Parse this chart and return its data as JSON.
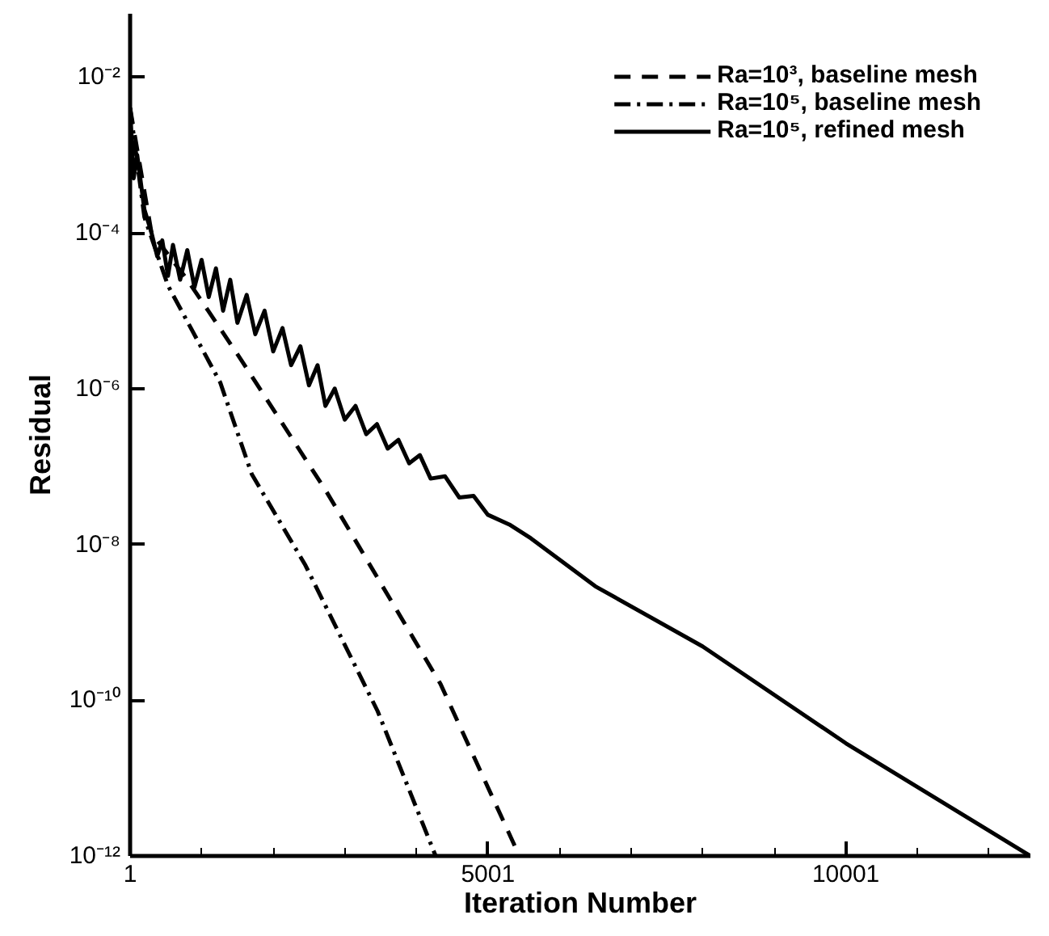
{
  "chart_data": {
    "type": "line",
    "xlabel": "Iteration Number",
    "ylabel": "Residual",
    "log": "y",
    "grid": false,
    "legend": "top right",
    "marker": "none",
    "xlim": [
      1,
      12580
    ],
    "ylim": [
      1e-12,
      0.065
    ],
    "xticks": [
      1,
      {
        "value": 1001,
        "label": null
      },
      {
        "value": 2001,
        "label": null
      },
      {
        "value": 3001,
        "label": null
      },
      {
        "value": 4001,
        "label": null
      },
      5001,
      {
        "value": 6001,
        "label": null
      },
      {
        "value": 7001,
        "label": null
      },
      {
        "value": 8001,
        "label": null
      },
      {
        "value": 9001,
        "label": null
      },
      10001,
      {
        "value": 11001,
        "label": null
      },
      {
        "value": 12001,
        "label": null
      }
    ],
    "yticks": [
      {
        "value": 1e-12,
        "label": "10⁻¹²"
      },
      {
        "value": 1e-10,
        "label": "10⁻¹⁰"
      },
      {
        "value": 1e-08,
        "label": "10⁻⁸"
      },
      {
        "value": 1e-06,
        "label": "10⁻⁶"
      },
      {
        "value": 0.0001,
        "label": "10⁻⁴"
      },
      {
        "value": 0.01,
        "label": "10⁻²"
      }
    ],
    "series": [
      {
        "name": "Ra=10³, baseline mesh",
        "color": "#000000",
        "line_style": "dashed",
        "x": [
          1,
          300,
          800,
          1520,
          2730,
          4340,
          5440
        ],
        "values": [
          0.004,
          0.0001,
          2.5e-05,
          2.6e-06,
          5e-08,
          1.6e-10,
          1e-12
        ]
      },
      {
        "name": "Ra=10⁵, baseline mesh",
        "color": "#000000",
        "line_style": "dashdot",
        "x": [
          1,
          200,
          530,
          1260,
          1700,
          2450,
          3460,
          4270
        ],
        "values": [
          0.004,
          0.00016,
          2.1e-05,
          1.2e-06,
          8e-08,
          5.4e-09,
          7.2e-11,
          1e-12
        ]
      },
      {
        "name": "Ra=10⁵, refined mesh",
        "color": "#000000",
        "line_style": "solid",
        "x": [
          1,
          50,
          100,
          200,
          300,
          380,
          450,
          530,
          600,
          700,
          800,
          900,
          1000,
          1100,
          1200,
          1300,
          1400,
          1500,
          1630,
          1750,
          1880,
          2000,
          2130,
          2250,
          2380,
          2500,
          2620,
          2730,
          2860,
          3000,
          3150,
          3300,
          3450,
          3600,
          3750,
          3900,
          4050,
          4200,
          4400,
          4600,
          4800,
          5000,
          5300,
          5600,
          6500,
          8000,
          10001,
          12580
        ],
        "values": [
          0.004,
          0.0005,
          0.001,
          0.0002,
          0.0001,
          5e-05,
          8e-05,
          2.8e-05,
          7e-05,
          2.5e-05,
          6e-05,
          2e-05,
          4.5e-05,
          1.5e-05,
          3.5e-05,
          1e-05,
          2.5e-05,
          7e-06,
          1.6e-05,
          5e-06,
          1e-05,
          3e-06,
          6e-06,
          2e-06,
          3.5e-06,
          1.1e-06,
          2e-06,
          6e-07,
          1e-06,
          4e-07,
          6e-07,
          2.6e-07,
          3.5e-07,
          1.7e-07,
          2.2e-07,
          1.1e-07,
          1.4e-07,
          7e-08,
          7.5e-08,
          4e-08,
          4.2e-08,
          2.4e-08,
          1.8e-08,
          1.2e-08,
          2.9e-09,
          4.9e-10,
          2.8e-11,
          1e-12
        ]
      }
    ]
  }
}
